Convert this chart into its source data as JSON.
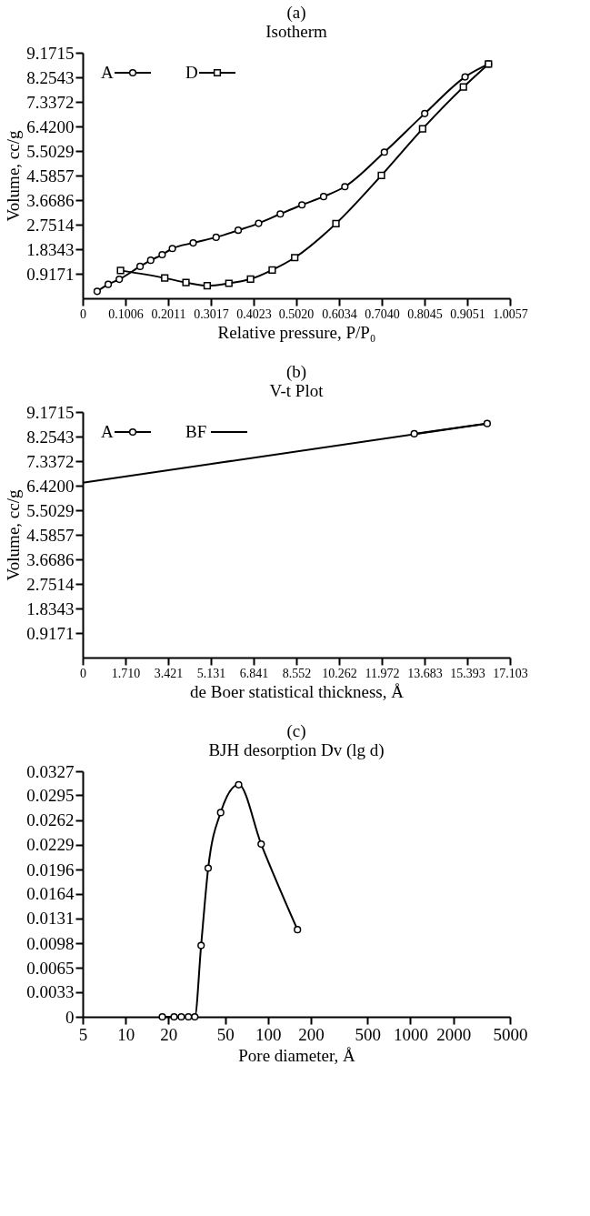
{
  "chart_data": [
    {
      "type": "line",
      "title": "(a)",
      "subtitle": "Isotherm",
      "xlabel": "Relative pressure, P/P₀",
      "ylabel": "Volume, cc/g",
      "legend": "top left",
      "xlim": [
        0,
        1.0057
      ],
      "xticks": [
        0,
        0.1006,
        0.2011,
        0.3017,
        0.4023,
        {
          "value": 0.502,
          "label": "0.5020"
        },
        0.6034,
        {
          "value": 0.704,
          "label": "0.7040"
        },
        0.8045,
        0.9051,
        1.0057
      ],
      "ylim": [
        0,
        9.1715
      ],
      "yticks": [
        0.9171,
        1.8343,
        2.7514,
        3.6686,
        4.5857,
        5.5029,
        {
          "value": 6.42,
          "label": "6.4200"
        },
        7.3372,
        8.2543,
        9.1715
      ],
      "series": [
        {
          "name": "A",
          "color": "#000000",
          "marker": "circle",
          "x": [
            0.034,
            0.06,
            0.086,
            0.135,
            0.16,
            0.187,
            0.211,
            0.26,
            0.314,
            0.366,
            0.414,
            0.465,
            0.516,
            0.567,
            0.617,
            0.71,
            0.805,
            0.9,
            0.955
          ],
          "values": [
            0.26,
            0.52,
            0.71,
            1.19,
            1.42,
            1.63,
            1.86,
            2.07,
            2.28,
            2.54,
            2.8,
            3.15,
            3.49,
            3.8,
            4.17,
            5.46,
            6.9,
            8.27,
            8.75
          ]
        },
        {
          "name": "D",
          "color": "#000000",
          "marker": "square",
          "x": [
            0.089,
            0.193,
            0.243,
            0.293,
            0.344,
            0.395,
            0.446,
            0.499,
            0.596,
            0.703,
            0.8,
            0.896,
            0.955
          ],
          "values": [
            1.04,
            0.76,
            0.59,
            0.47,
            0.56,
            0.72,
            1.06,
            1.52,
            2.79,
            4.59,
            6.33,
            7.89,
            8.75
          ]
        }
      ]
    },
    {
      "type": "line",
      "title": "(b)",
      "subtitle": "V-t Plot",
      "xlabel": "de Boer statistical thickness, Å",
      "ylabel": "Volume, cc/g",
      "legend": "top left",
      "xlim": [
        0,
        17.103
      ],
      "xticks": [
        0,
        {
          "value": 1.71,
          "label": "1.710"
        },
        3.421,
        5.131,
        6.841,
        8.552,
        10.262,
        11.972,
        13.683,
        15.393,
        17.103
      ],
      "ylim": [
        0,
        9.1715
      ],
      "yticks": [
        0.9171,
        1.8343,
        2.7514,
        3.6686,
        4.5857,
        5.5029,
        {
          "value": 6.42,
          "label": "6.4200"
        },
        7.3372,
        8.2543,
        9.1715
      ],
      "series": [
        {
          "name": "A",
          "color": "#000000",
          "marker": "circle",
          "x": [
            13.27,
            16.19
          ],
          "values": [
            8.36,
            8.74
          ]
        },
        {
          "name": "BF",
          "color": "#000000",
          "marker": "none",
          "x": [
            0,
            16.19
          ],
          "values": [
            6.53,
            8.74
          ]
        }
      ]
    },
    {
      "type": "line",
      "title": "(c)",
      "subtitle": "BJH desorption Dv (lg d)",
      "xlabel": "Pore diameter, Å",
      "log": "x",
      "xlim": [
        5,
        5000
      ],
      "xticks": [
        5,
        10,
        20,
        50,
        100,
        200,
        500,
        1000,
        2000,
        5000
      ],
      "ylim": [
        0,
        0.0327
      ],
      "yticks": [
        0,
        0.0033,
        0.0065,
        0.0098,
        0.0131,
        0.0164,
        0.0196,
        0.0229,
        0.0262,
        0.0295,
        0.0327
      ],
      "series": [
        {
          "color": "#000000",
          "marker": "circle",
          "x": [
            18.1,
            21.9,
            24.6,
            27.6,
            30.6,
            33.9,
            38.0,
            46.5,
            62.2,
            89.5,
            161
          ],
          "values": [
            0,
            0,
            0,
            0,
            0,
            0.0095,
            0.0198,
            0.0272,
            0.0309,
            0.023,
            0.0116
          ]
        }
      ]
    }
  ]
}
